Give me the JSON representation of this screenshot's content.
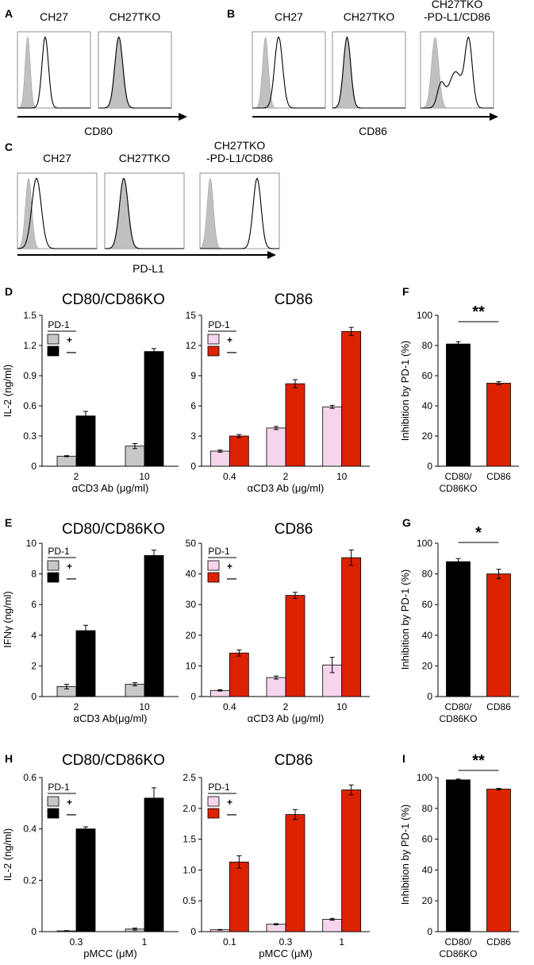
{
  "colors": {
    "black": "#000000",
    "grey": "#c8c8c8",
    "red": "#dd2200",
    "pink": "#f5d5ec",
    "title_red": "#cc1100",
    "shade": "#c0c0c0"
  },
  "flow": {
    "A": {
      "letter": "A",
      "samples": [
        "CH27",
        "CH27TKO"
      ],
      "marker": "CD80"
    },
    "B": {
      "letter": "B",
      "samples": [
        "CH27",
        "CH27TKO",
        "CH27TKO\n-PD-L1/CD86"
      ],
      "marker": "CD86"
    },
    "C": {
      "letter": "C",
      "samples": [
        "CH27",
        "CH27TKO",
        "CH27TKO\n-PD-L1/CD86"
      ],
      "marker": "PD-L1"
    }
  },
  "chart_data": [
    {
      "id": "D_left",
      "letter": "D",
      "type": "bar",
      "title": "CD80/CD86KO",
      "ylabel": "IL-2 (ng/ml)",
      "xlabel": "αCD3 Ab (μg/ml)",
      "categories": [
        "2",
        "10"
      ],
      "ylim": [
        0,
        1.5
      ],
      "yticks": [
        "0",
        "0.3",
        "0.6",
        "0.9",
        "1.2",
        "1.5"
      ],
      "legend": {
        "title": "PD-1",
        "labels": [
          "+",
          "—"
        ]
      },
      "series": [
        {
          "name": "+",
          "color": "grey",
          "values": [
            0.1,
            0.2
          ],
          "errors": [
            0.005,
            0.025
          ]
        },
        {
          "name": "—",
          "color": "black",
          "values": [
            0.5,
            1.14
          ],
          "errors": [
            0.045,
            0.03
          ]
        }
      ]
    },
    {
      "id": "D_right",
      "type": "bar",
      "title": "CD86",
      "ylabel": "",
      "xlabel": "αCD3 Ab (μg/ml)",
      "categories": [
        "0.4",
        "2",
        "10"
      ],
      "ylim": [
        0,
        15
      ],
      "yticks": [
        "0",
        "3",
        "6",
        "9",
        "12",
        "15"
      ],
      "legend": {
        "title": "PD-1",
        "labels": [
          "+",
          "—"
        ]
      },
      "series": [
        {
          "name": "+",
          "color": "pink",
          "values": [
            1.5,
            3.8,
            5.9
          ],
          "errors": [
            0.1,
            0.15,
            0.15
          ]
        },
        {
          "name": "—",
          "color": "red",
          "values": [
            3.0,
            8.2,
            13.4
          ],
          "errors": [
            0.15,
            0.4,
            0.4
          ]
        }
      ]
    },
    {
      "id": "F",
      "letter": "F",
      "type": "bar",
      "title": "",
      "ylabel": "Inhibition by PD-1 (%)",
      "categories": [
        "CD80/\nCD86KO",
        "CD86"
      ],
      "ylim": [
        0,
        100
      ],
      "yticks": [
        "0",
        "20",
        "40",
        "60",
        "80",
        "100"
      ],
      "significance": "**",
      "series": [
        {
          "name": "inhibition",
          "colors": [
            "black",
            "red"
          ],
          "values": [
            81,
            55
          ],
          "errors": [
            1.5,
            1
          ]
        }
      ]
    },
    {
      "id": "E_left",
      "letter": "E",
      "type": "bar",
      "title": "CD80/CD86KO",
      "ylabel": "IFNγ (ng/ml)",
      "xlabel": "αCD3  Ab(μg/ml)",
      "categories": [
        "2",
        "10"
      ],
      "ylim": [
        0,
        10
      ],
      "yticks": [
        "0",
        "2",
        "4",
        "6",
        "8",
        "10"
      ],
      "legend": {
        "title": "PD-1",
        "labels": [
          "+",
          "—"
        ]
      },
      "series": [
        {
          "name": "+",
          "color": "grey",
          "values": [
            0.65,
            0.8
          ],
          "errors": [
            0.15,
            0.1
          ]
        },
        {
          "name": "—",
          "color": "black",
          "values": [
            4.3,
            9.2
          ],
          "errors": [
            0.35,
            0.35
          ]
        }
      ]
    },
    {
      "id": "E_right",
      "type": "bar",
      "title": "CD86",
      "ylabel": "",
      "xlabel": "αCD3 Ab (μg/ml)",
      "categories": [
        "0.4",
        "2",
        "10"
      ],
      "ylim": [
        0,
        50
      ],
      "yticks": [
        "0",
        "10",
        "20",
        "30",
        "40",
        "50"
      ],
      "legend": {
        "title": "PD-1",
        "labels": [
          "+",
          "—"
        ]
      },
      "series": [
        {
          "name": "+",
          "color": "pink",
          "values": [
            2.0,
            6.2,
            10.3
          ],
          "errors": [
            0.2,
            0.5,
            2.5
          ]
        },
        {
          "name": "—",
          "color": "red",
          "values": [
            14.2,
            33.0,
            45.3
          ],
          "errors": [
            1.0,
            1.0,
            2.5
          ]
        }
      ]
    },
    {
      "id": "G",
      "letter": "G",
      "type": "bar",
      "title": "",
      "ylabel": "Inhibition by PD-1 (%)",
      "categories": [
        "CD80/\nCD86KO",
        "CD86"
      ],
      "ylim": [
        0,
        100
      ],
      "yticks": [
        "0",
        "20",
        "40",
        "60",
        "80",
        "100"
      ],
      "significance": "*",
      "series": [
        {
          "name": "inhibition",
          "colors": [
            "black",
            "red"
          ],
          "values": [
            88,
            80
          ],
          "errors": [
            2,
            3
          ]
        }
      ]
    },
    {
      "id": "H_left",
      "letter": "H",
      "type": "bar",
      "title": "CD80/CD86KO",
      "ylabel": "IL-2 (ng/ml)",
      "xlabel": "pMCC (μM)",
      "categories": [
        "0.3",
        "1"
      ],
      "ylim": [
        0,
        0.6
      ],
      "yticks": [
        "0",
        "0.2",
        "0.4",
        "0.6"
      ],
      "legend": {
        "title": "PD-1",
        "labels": [
          "+",
          "—"
        ]
      },
      "series": [
        {
          "name": "+",
          "color": "grey",
          "values": [
            0.003,
            0.01
          ],
          "errors": [
            0.001,
            0.004
          ]
        },
        {
          "name": "—",
          "color": "black",
          "values": [
            0.4,
            0.52
          ],
          "errors": [
            0.008,
            0.04
          ]
        }
      ]
    },
    {
      "id": "H_right",
      "type": "bar",
      "title": "CD86",
      "ylabel": "",
      "xlabel": "pMCC (μM)",
      "categories": [
        "0.1",
        "0.3",
        "1"
      ],
      "ylim": [
        0,
        2.5
      ],
      "yticks": [
        "0",
        "0.5",
        "1.0",
        "1.5",
        "2.0",
        "2.5"
      ],
      "legend": {
        "title": "PD-1",
        "labels": [
          "+",
          "—"
        ]
      },
      "series": [
        {
          "name": "+",
          "color": "pink",
          "values": [
            0.03,
            0.12,
            0.2
          ],
          "errors": [
            0.005,
            0.01,
            0.015
          ]
        },
        {
          "name": "—",
          "color": "red",
          "values": [
            1.13,
            1.9,
            2.3
          ],
          "errors": [
            0.1,
            0.08,
            0.08
          ]
        }
      ]
    },
    {
      "id": "I",
      "letter": "I",
      "type": "bar",
      "title": "",
      "ylabel": "Inhibition by PD-1 (%)",
      "categories": [
        "CD80/\nCD86KO",
        "CD86"
      ],
      "ylim": [
        0,
        100
      ],
      "yticks": [
        "0",
        "20",
        "40",
        "60",
        "80",
        "100"
      ],
      "significance": "**",
      "series": [
        {
          "name": "inhibition",
          "colors": [
            "black",
            "red"
          ],
          "values": [
            98.5,
            92.5
          ],
          "errors": [
            0.5,
            0.5
          ]
        }
      ]
    }
  ]
}
